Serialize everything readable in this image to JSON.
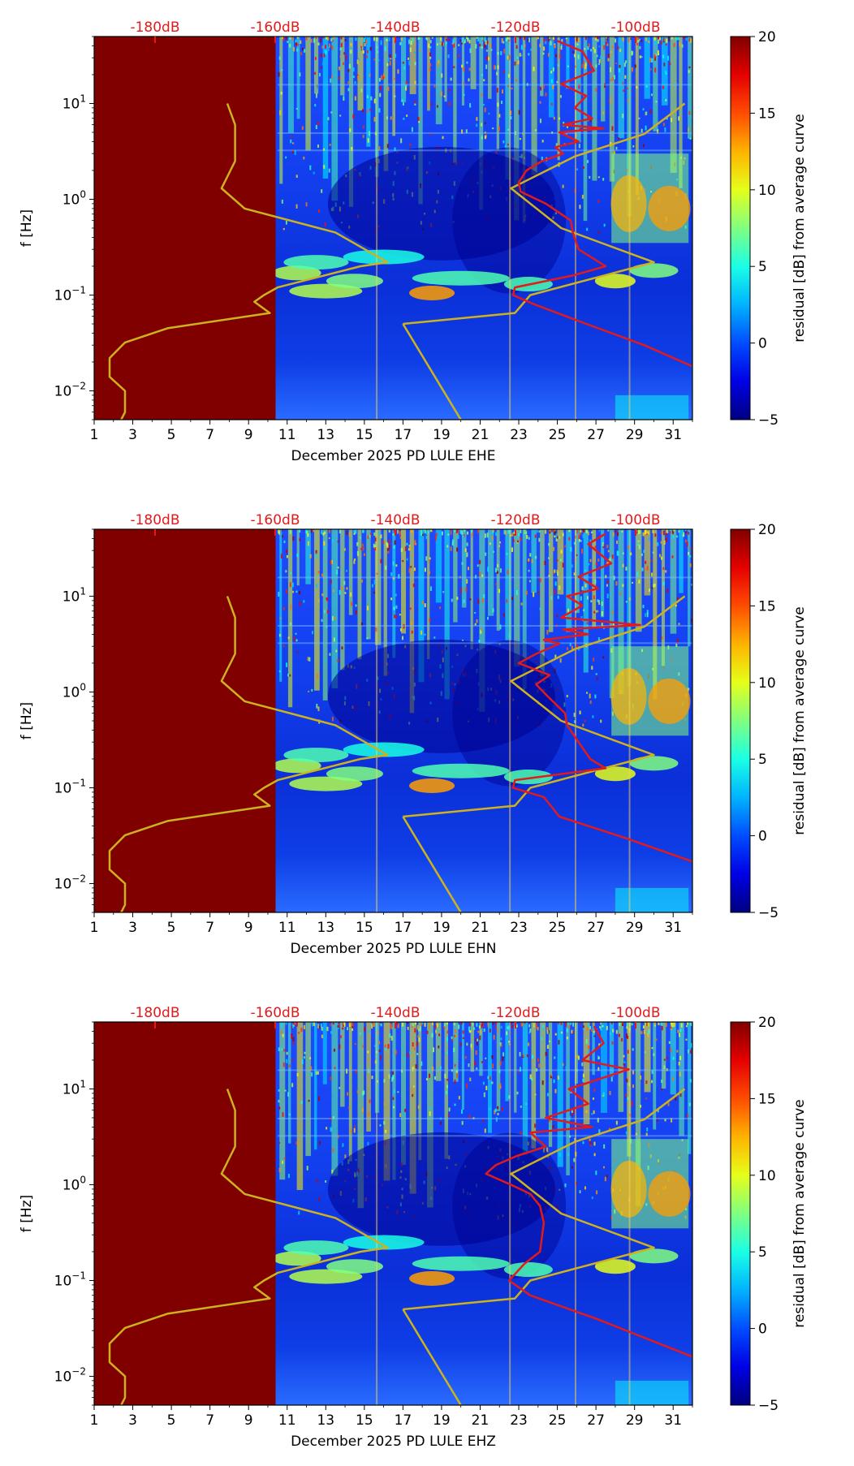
{
  "chart_data": [
    {
      "type": "heatmap",
      "xlabel": "December 2025 PD LULE  EHE",
      "ylabel": "f [Hz]",
      "colorbar_label": "residual [dB] from average curve",
      "x_ticks": [
        "1",
        "3",
        "5",
        "7",
        "9",
        "11",
        "13",
        "15",
        "17",
        "19",
        "21",
        "23",
        "25",
        "27",
        "29",
        "31"
      ],
      "y_ticks": [
        "10^{-2}",
        "10^{-1}",
        "10^{0}",
        "10^{1}"
      ],
      "top_ticks": [
        "-180dB",
        "-160dB",
        "-140dB",
        "-120dB",
        "-100dB"
      ],
      "colorbar_ticks": [
        "20",
        "15",
        "10",
        "5",
        "0",
        "−5"
      ],
      "xlim": [
        1,
        32
      ],
      "ylim": [
        0.005,
        50
      ],
      "y_scale": "log",
      "color_range": [
        -5,
        20
      ],
      "colormap": "jet",
      "no_data_until_day": 10.4,
      "series": [
        {
          "color": "#cdb21f",
          "x": [
            7.9,
            8.3,
            8.3,
            7.6,
            8.8,
            13.5,
            16.2,
            14.8,
            10.5,
            9.8,
            9.3,
            10.1,
            4.8,
            2.6,
            1.8,
            1.8,
            2.6,
            2.6,
            2.4
          ],
          "y": [
            10,
            6,
            2.5,
            1.3,
            0.8,
            0.45,
            0.22,
            0.2,
            0.12,
            0.1,
            0.085,
            0.065,
            0.045,
            0.032,
            0.022,
            0.014,
            0.01,
            0.006,
            0.005
          ]
        },
        {
          "color": "#cdb21f",
          "x": [
            17,
            22.8,
            23.6,
            30,
            25.2,
            22.6,
            25.9,
            29.5,
            31.6
          ],
          "y": [
            0.05,
            0.065,
            0.1,
            0.22,
            0.5,
            1.3,
            2.8,
            4.8,
            10
          ]
        },
        {
          "color": "#cdb21f",
          "x": [
            17,
            20
          ],
          "y": [
            0.05,
            0.005
          ]
        },
        {
          "color": "#e31a1c",
          "x": [
            25,
            26.3,
            26.9,
            25.2,
            26.5,
            25.9,
            26.8,
            25.3,
            27.4,
            25.1,
            26.1,
            24.9,
            25.3,
            24.2,
            23.4,
            23,
            23.1,
            24.4,
            25.7,
            25.8,
            26.1,
            27.5,
            25.8,
            22.8,
            22.7,
            23.8,
            26.5,
            29.5,
            32
          ],
          "y": [
            45,
            35,
            22,
            16,
            12,
            9,
            7,
            6,
            5.5,
            5,
            4,
            3.5,
            3,
            2.5,
            2,
            1.5,
            1.2,
            0.9,
            0.6,
            0.45,
            0.3,
            0.2,
            0.16,
            0.12,
            0.1,
            0.08,
            0.05,
            0.03,
            0.018
          ]
        }
      ]
    },
    {
      "type": "heatmap",
      "xlabel": "December 2025 PD LULE  EHN",
      "ylabel": "f [Hz]",
      "colorbar_label": "residual [dB] from average curve",
      "x_ticks": [
        "1",
        "3",
        "5",
        "7",
        "9",
        "11",
        "13",
        "15",
        "17",
        "19",
        "21",
        "23",
        "25",
        "27",
        "29",
        "31"
      ],
      "y_ticks": [
        "10^{-2}",
        "10^{-1}",
        "10^{0}",
        "10^{1}"
      ],
      "top_ticks": [
        "-180dB",
        "-160dB",
        "-140dB",
        "-120dB",
        "-100dB"
      ],
      "colorbar_ticks": [
        "20",
        "15",
        "10",
        "5",
        "0",
        "−5"
      ],
      "xlim": [
        1,
        32
      ],
      "ylim": [
        0.005,
        50
      ],
      "y_scale": "log",
      "color_range": [
        -5,
        20
      ],
      "colormap": "jet",
      "no_data_until_day": 10.4,
      "series": [
        {
          "color": "#cdb21f",
          "x": [
            7.9,
            8.3,
            8.3,
            7.6,
            8.8,
            13.5,
            16.2,
            14.8,
            10.5,
            9.8,
            9.3,
            10.1,
            4.8,
            2.6,
            1.8,
            1.8,
            2.6,
            2.6,
            2.4
          ],
          "y": [
            10,
            6,
            2.5,
            1.3,
            0.8,
            0.45,
            0.22,
            0.2,
            0.12,
            0.1,
            0.085,
            0.065,
            0.045,
            0.032,
            0.022,
            0.014,
            0.01,
            0.006,
            0.005
          ]
        },
        {
          "color": "#cdb21f",
          "x": [
            17,
            22.8,
            23.6,
            30,
            25.2,
            22.6,
            25.9,
            29.5,
            31.6
          ],
          "y": [
            0.05,
            0.065,
            0.1,
            0.22,
            0.5,
            1.3,
            2.8,
            4.8,
            10
          ]
        },
        {
          "color": "#cdb21f",
          "x": [
            17,
            20
          ],
          "y": [
            0.05,
            0.005
          ]
        },
        {
          "color": "#e31a1c",
          "x": [
            27.5,
            26.6,
            27.8,
            26.1,
            27.1,
            25.5,
            26.3,
            25.2,
            29.3,
            25.3,
            26.6,
            24.3,
            25.1,
            23.9,
            23,
            24.6,
            23.9,
            24.5,
            25.4,
            25.5,
            26.7,
            27.5,
            22.8,
            22.7,
            24.3,
            25.1,
            28.5,
            32
          ],
          "y": [
            45,
            35,
            22,
            16,
            12,
            10,
            8,
            6,
            5,
            4.5,
            4,
            3.5,
            3.2,
            2.5,
            2,
            1.5,
            1.2,
            0.9,
            0.6,
            0.45,
            0.2,
            0.16,
            0.12,
            0.1,
            0.08,
            0.05,
            0.03,
            0.017
          ]
        }
      ]
    },
    {
      "type": "heatmap",
      "xlabel": "December 2025 PD LULE  EHZ",
      "ylabel": "f [Hz]",
      "colorbar_label": "residual [dB] from average curve",
      "x_ticks": [
        "1",
        "3",
        "5",
        "7",
        "9",
        "11",
        "13",
        "15",
        "17",
        "19",
        "21",
        "23",
        "25",
        "27",
        "29",
        "31"
      ],
      "y_ticks": [
        "10^{-2}",
        "10^{-1}",
        "10^{0}",
        "10^{1}"
      ],
      "top_ticks": [
        "-180dB",
        "-160dB",
        "-140dB",
        "-120dB",
        "-100dB"
      ],
      "colorbar_ticks": [
        "20",
        "15",
        "10",
        "5",
        "0",
        "−5"
      ],
      "xlim": [
        1,
        32
      ],
      "ylim": [
        0.005,
        50
      ],
      "y_scale": "log",
      "color_range": [
        -5,
        20
      ],
      "colormap": "jet",
      "no_data_until_day": 10.4,
      "series": [
        {
          "color": "#cdb21f",
          "x": [
            7.9,
            8.3,
            8.3,
            7.6,
            8.8,
            13.5,
            16.2,
            14.8,
            10.5,
            9.8,
            9.3,
            10.1,
            4.8,
            2.6,
            1.8,
            1.8,
            2.6,
            2.6,
            2.4
          ],
          "y": [
            10,
            6,
            2.5,
            1.3,
            0.8,
            0.45,
            0.22,
            0.2,
            0.12,
            0.1,
            0.085,
            0.065,
            0.045,
            0.032,
            0.022,
            0.014,
            0.01,
            0.006,
            0.005
          ]
        },
        {
          "color": "#cdb21f",
          "x": [
            17,
            22.8,
            23.6,
            30,
            25.2,
            22.6,
            25.9,
            29.5,
            31.6
          ],
          "y": [
            0.05,
            0.065,
            0.1,
            0.22,
            0.5,
            1.3,
            2.8,
            4.8,
            10
          ]
        },
        {
          "color": "#cdb21f",
          "x": [
            17,
            20
          ],
          "y": [
            0.05,
            0.005
          ]
        },
        {
          "color": "#e31a1c",
          "x": [
            26.9,
            27.4,
            26.3,
            28.7,
            25.6,
            26.6,
            24.4,
            26.8,
            23.6,
            24.4,
            22.9,
            21.8,
            21.3,
            22.6,
            23.6,
            24.1,
            24.3,
            24.1,
            23.3,
            22.5,
            23.6,
            27,
            32
          ],
          "y": [
            45,
            30,
            20,
            16,
            10,
            7,
            5,
            4,
            3.5,
            2.5,
            2,
            1.6,
            1.3,
            1.0,
            0.8,
            0.6,
            0.4,
            0.2,
            0.15,
            0.1,
            0.07,
            0.04,
            0.016
          ]
        }
      ]
    }
  ]
}
